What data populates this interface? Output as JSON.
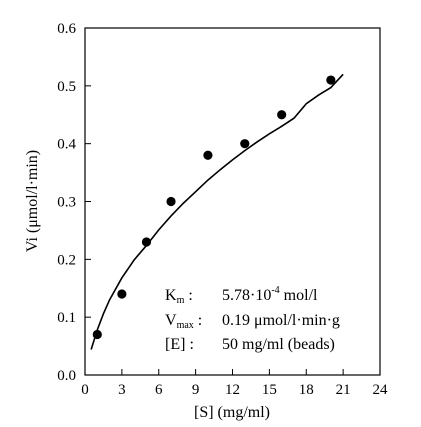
{
  "chart_data": {
    "type": "scatter",
    "title": "",
    "xlabel": "[S] (mg/ml)",
    "ylabel": "Vi (μmol/l·min)",
    "xlim": [
      0,
      24
    ],
    "ylim": [
      0.0,
      0.6
    ],
    "x_ticks": [
      0,
      3,
      6,
      9,
      12,
      15,
      18,
      21,
      24
    ],
    "y_ticks": [
      0.0,
      0.1,
      0.2,
      0.3,
      0.4,
      0.5,
      0.6
    ],
    "x_tick_labels": [
      "0",
      "3",
      "6",
      "9",
      "12",
      "15",
      "18",
      "21",
      "24"
    ],
    "y_tick_labels": [
      "0.0",
      "0.1",
      "0.2",
      "0.3",
      "0.4",
      "0.5",
      "0.6"
    ],
    "grid": false,
    "points": {
      "x": [
        1,
        3,
        5,
        7,
        10,
        13,
        16,
        20
      ],
      "y": [
        0.07,
        0.14,
        0.23,
        0.3,
        0.38,
        0.4,
        0.45,
        0.51
      ]
    },
    "fit_curve": {
      "model": "michaelis-menten",
      "x": [
        0.5,
        1,
        1.5,
        2,
        3,
        4,
        5,
        6,
        7,
        8,
        9,
        10,
        11,
        12,
        13,
        14,
        15,
        16,
        17,
        18,
        19,
        20,
        21
      ],
      "y": [
        0.044,
        0.078,
        0.106,
        0.13,
        0.168,
        0.199,
        0.224,
        0.251,
        0.275,
        0.297,
        0.317,
        0.337,
        0.355,
        0.372,
        0.388,
        0.403,
        0.417,
        0.43,
        0.444,
        0.469,
        0.484,
        0.497,
        0.52
      ]
    },
    "annotations": [
      {
        "label": "K",
        "label_sub": "m",
        "sep": " :",
        "value": "5.78·10",
        "value_sup": "-4",
        "unit": " mol/l"
      },
      {
        "label": "V",
        "label_sub": "max",
        "sep": " :",
        "value": "0.19 μmol/l·min·g",
        "value_sup": "",
        "unit": ""
      },
      {
        "label": "[E]",
        "label_sub": "",
        "sep": " :",
        "value": "50 mg/ml (beads)",
        "value_sup": "",
        "unit": ""
      }
    ]
  }
}
